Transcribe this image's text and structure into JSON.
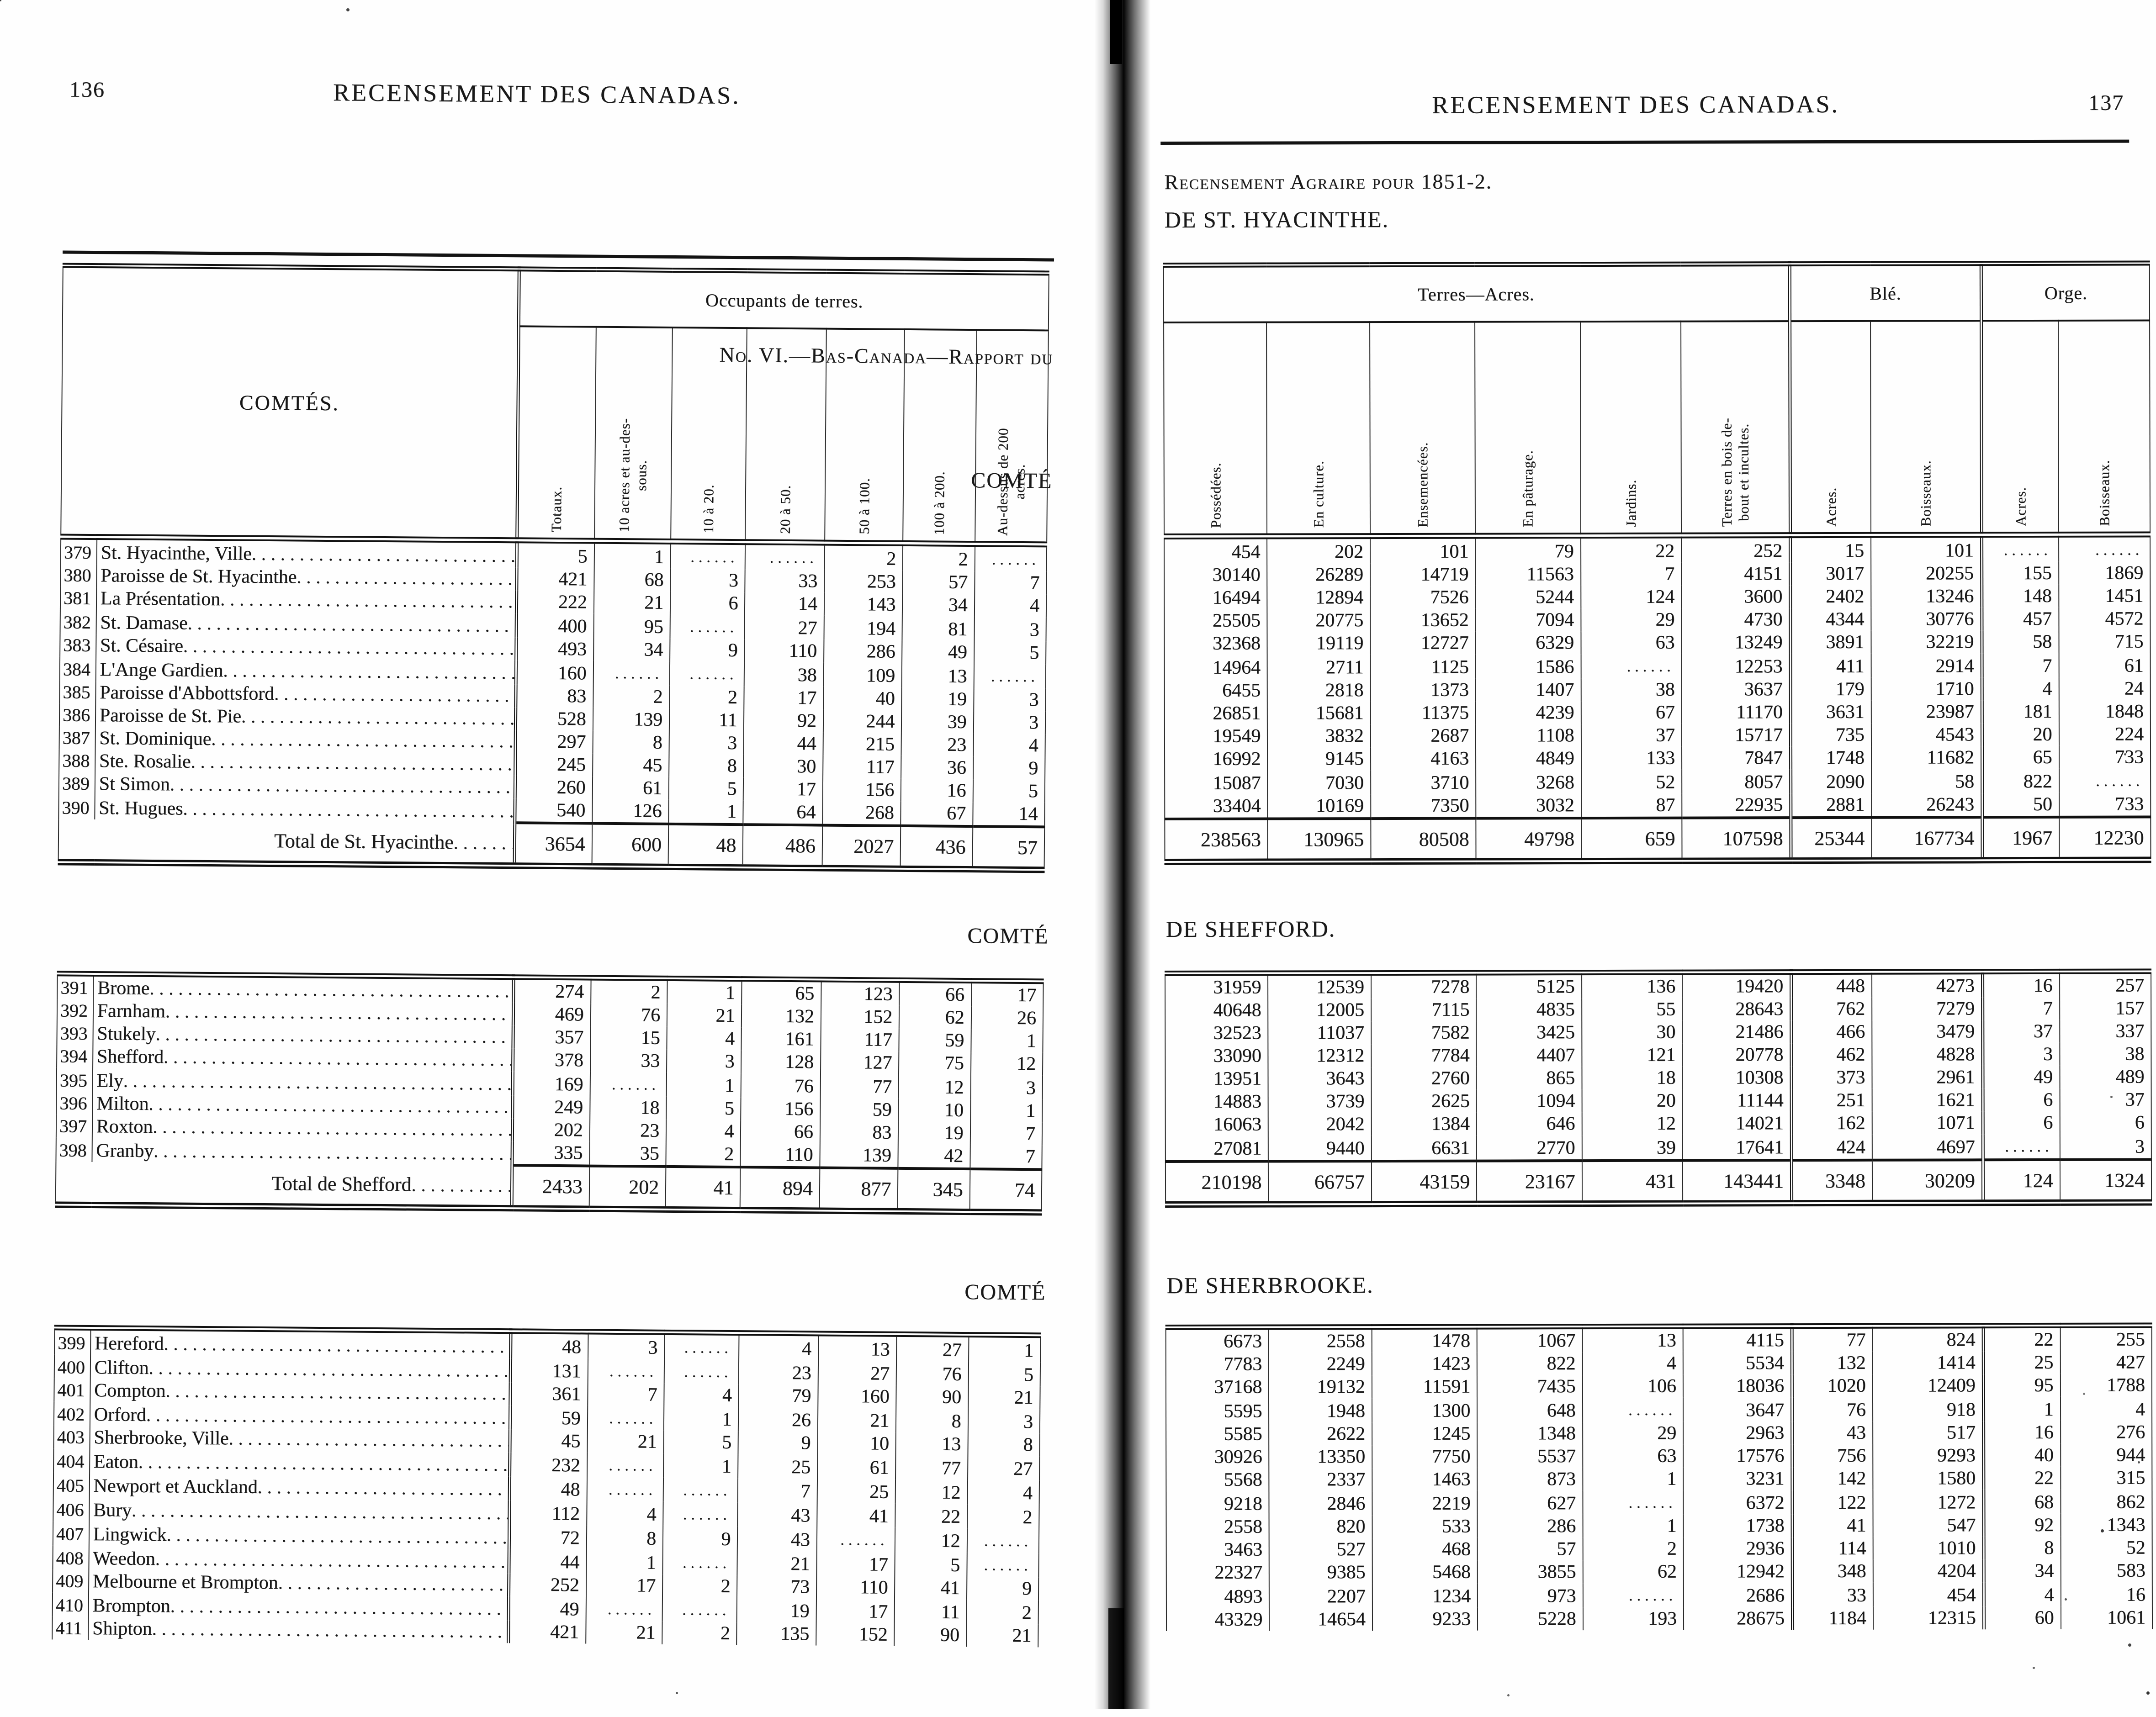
{
  "colors": {
    "ink": "#1a1a1a",
    "paper": "#fefefe",
    "binding": "#050505"
  },
  "left_page": {
    "page_number": "136",
    "running_title": "RECENSEMENT DES CANADAS.",
    "report_line": "No. VI.—Bas-Canada—Rapport du",
    "comte_word_1": "COMTÉ",
    "comte_word_2": "COMTÉ",
    "comte_word_3": "COMTÉ",
    "table": {
      "name_header": "COMTÉS.",
      "group_header": "Occupants de terres.",
      "columns": [
        "Totaux.",
        "10 acres et au-des-\nsous.",
        "10 à 20.",
        "20 à 50.",
        "50 à 100.",
        "100 à 200.",
        "Au-dessus de 200\nacres."
      ]
    },
    "sections": [
      {
        "rows": [
          {
            "no": "379",
            "name": "St. Hyacinthe, Ville",
            "values": [
              "5",
              "1",
              "",
              "",
              "2",
              "2",
              ""
            ]
          },
          {
            "no": "380",
            "name": "Paroisse de St. Hyacinthe",
            "values": [
              "421",
              "68",
              "3",
              "33",
              "253",
              "57",
              "7"
            ]
          },
          {
            "no": "381",
            "name": "La Présentation",
            "values": [
              "222",
              "21",
              "6",
              "14",
              "143",
              "34",
              "4"
            ]
          },
          {
            "no": "382",
            "name": "St. Damase",
            "values": [
              "400",
              "95",
              "",
              "27",
              "194",
              "81",
              "3"
            ]
          },
          {
            "no": "383",
            "name": "St. Césaire",
            "values": [
              "493",
              "34",
              "9",
              "110",
              "286",
              "49",
              "5"
            ]
          },
          {
            "no": "384",
            "name": "L'Ange Gardien",
            "values": [
              "160",
              "",
              "",
              "38",
              "109",
              "13",
              ""
            ]
          },
          {
            "no": "385",
            "name": "Paroisse d'Abbottsford",
            "values": [
              "83",
              "2",
              "2",
              "17",
              "40",
              "19",
              "3"
            ]
          },
          {
            "no": "386",
            "name": "Paroisse de St. Pie",
            "values": [
              "528",
              "139",
              "11",
              "92",
              "244",
              "39",
              "3"
            ]
          },
          {
            "no": "387",
            "name": "St. Dominique",
            "values": [
              "297",
              "8",
              "3",
              "44",
              "215",
              "23",
              "4"
            ]
          },
          {
            "no": "388",
            "name": "Ste. Rosalie",
            "values": [
              "245",
              "45",
              "8",
              "30",
              "117",
              "36",
              "9"
            ]
          },
          {
            "no": "389",
            "name": "St Simon",
            "values": [
              "260",
              "61",
              "5",
              "17",
              "156",
              "16",
              "5"
            ]
          },
          {
            "no": "390",
            "name": "St. Hugues",
            "values": [
              "540",
              "126",
              "1",
              "64",
              "268",
              "67",
              "14"
            ]
          }
        ],
        "total_label": "Total de St. Hyacinthe",
        "total_values": [
          "3654",
          "600",
          "48",
          "486",
          "2027",
          "436",
          "57"
        ]
      },
      {
        "rows": [
          {
            "no": "391",
            "name": "Brome",
            "values": [
              "274",
              "2",
              "1",
              "65",
              "123",
              "66",
              "17"
            ]
          },
          {
            "no": "392",
            "name": "Farnham",
            "values": [
              "469",
              "76",
              "21",
              "132",
              "152",
              "62",
              "26"
            ]
          },
          {
            "no": "393",
            "name": "Stukely",
            "values": [
              "357",
              "15",
              "4",
              "161",
              "117",
              "59",
              "1"
            ]
          },
          {
            "no": "394",
            "name": "Shefford",
            "values": [
              "378",
              "33",
              "3",
              "128",
              "127",
              "75",
              "12"
            ]
          },
          {
            "no": "395",
            "name": "Ely",
            "values": [
              "169",
              "",
              "1",
              "76",
              "77",
              "12",
              "3"
            ]
          },
          {
            "no": "396",
            "name": "Milton",
            "values": [
              "249",
              "18",
              "5",
              "156",
              "59",
              "10",
              "1"
            ]
          },
          {
            "no": "397",
            "name": "Roxton",
            "values": [
              "202",
              "23",
              "4",
              "66",
              "83",
              "19",
              "7"
            ]
          },
          {
            "no": "398",
            "name": "Granby",
            "values": [
              "335",
              "35",
              "2",
              "110",
              "139",
              "42",
              "7"
            ]
          }
        ],
        "total_label": "Total de Shefford",
        "total_values": [
          "2433",
          "202",
          "41",
          "894",
          "877",
          "345",
          "74"
        ]
      },
      {
        "rows": [
          {
            "no": "399",
            "name": "Hereford",
            "values": [
              "48",
              "3",
              "",
              "4",
              "13",
              "27",
              "1"
            ]
          },
          {
            "no": "400",
            "name": "Clifton",
            "values": [
              "131",
              "",
              "",
              "23",
              "27",
              "76",
              "5"
            ]
          },
          {
            "no": "401",
            "name": "Compton",
            "values": [
              "361",
              "7",
              "4",
              "79",
              "160",
              "90",
              "21"
            ]
          },
          {
            "no": "402",
            "name": "Orford",
            "values": [
              "59",
              "",
              "1",
              "26",
              "21",
              "8",
              "3"
            ]
          },
          {
            "no": "403",
            "name": "Sherbrooke, Ville",
            "values": [
              "45",
              "21",
              "5",
              "9",
              "10",
              "13",
              "8"
            ]
          },
          {
            "no": "404",
            "name": "Eaton",
            "values": [
              "232",
              "",
              "1",
              "25",
              "61",
              "77",
              "27"
            ]
          },
          {
            "no": "405",
            "name": "Newport et Auckland",
            "values": [
              "48",
              "",
              "",
              "7",
              "25",
              "12",
              "4"
            ]
          },
          {
            "no": "406",
            "name": "Bury",
            "values": [
              "112",
              "4",
              "",
              "43",
              "41",
              "22",
              "2"
            ]
          },
          {
            "no": "407",
            "name": "Lingwick",
            "values": [
              "72",
              "8",
              "9",
              "43",
              "",
              "12",
              ""
            ]
          },
          {
            "no": "408",
            "name": "Weedon",
            "values": [
              "44",
              "1",
              "",
              "21",
              "17",
              "5",
              ""
            ]
          },
          {
            "no": "409",
            "name": "Melbourne et Brompton",
            "values": [
              "252",
              "17",
              "2",
              "73",
              "110",
              "41",
              "9"
            ]
          },
          {
            "no": "410",
            "name": "Brompton",
            "values": [
              "49",
              "",
              "",
              "19",
              "17",
              "11",
              "2"
            ]
          },
          {
            "no": "411",
            "name": "Shipton",
            "values": [
              "421",
              "21",
              "2",
              "135",
              "152",
              "90",
              "21"
            ]
          }
        ]
      }
    ]
  },
  "right_page": {
    "page_number": "137",
    "running_title": "RECENSEMENT DES CANADAS.",
    "census_line": "Recensement Agraire pour 1851-2.",
    "section_titles": [
      "DE ST. HYACINTHE.",
      "DE SHEFFORD.",
      "DE SHERBROOKE."
    ],
    "table": {
      "groups": [
        {
          "label": "Terres—Acres.",
          "span": 6
        },
        {
          "label": "Blé.",
          "span": 2
        },
        {
          "label": "Orge.",
          "span": 2
        }
      ],
      "columns": [
        "Possédées.",
        "En culture.",
        "Ensemencées.",
        "En pâturage.",
        "Jardins.",
        "Terres en bois de-\nbout et incultes.",
        "Acres.",
        "Boisseaux.",
        "Acres.",
        "Boisseaux."
      ]
    },
    "sections": [
      {
        "rows": [
          [
            "454",
            "202",
            "101",
            "79",
            "22",
            "252",
            "15",
            "101",
            "",
            ""
          ],
          [
            "30140",
            "26289",
            "14719",
            "11563",
            "7",
            "4151",
            "3017",
            "20255",
            "155",
            "1869"
          ],
          [
            "16494",
            "12894",
            "7526",
            "5244",
            "124",
            "3600",
            "2402",
            "13246",
            "148",
            "1451"
          ],
          [
            "25505",
            "20775",
            "13652",
            "7094",
            "29",
            "4730",
            "4344",
            "30776",
            "457",
            "4572"
          ],
          [
            "32368",
            "19119",
            "12727",
            "6329",
            "63",
            "13249",
            "3891",
            "32219",
            "58",
            "715"
          ],
          [
            "14964",
            "2711",
            "1125",
            "1586",
            "",
            "12253",
            "411",
            "2914",
            "7",
            "61"
          ],
          [
            "6455",
            "2818",
            "1373",
            "1407",
            "38",
            "3637",
            "179",
            "1710",
            "4",
            "24"
          ],
          [
            "26851",
            "15681",
            "11375",
            "4239",
            "67",
            "11170",
            "3631",
            "23987",
            "181",
            "1848"
          ],
          [
            "19549",
            "3832",
            "2687",
            "1108",
            "37",
            "15717",
            "735",
            "4543",
            "20",
            "224"
          ],
          [
            "16992",
            "9145",
            "4163",
            "4849",
            "133",
            "7847",
            "1748",
            "11682",
            "65",
            "733"
          ],
          [
            "15087",
            "7030",
            "3710",
            "3268",
            "52",
            "8057",
            "2090",
            "58",
            "822",
            ""
          ],
          [
            "33404",
            "10169",
            "7350",
            "3032",
            "87",
            "22935",
            "2881",
            "26243",
            "50",
            "733"
          ]
        ],
        "total_values": [
          "238563",
          "130965",
          "80508",
          "49798",
          "659",
          "107598",
          "25344",
          "167734",
          "1967",
          "12230"
        ]
      },
      {
        "rows": [
          [
            "31959",
            "12539",
            "7278",
            "5125",
            "136",
            "19420",
            "448",
            "4273",
            "16",
            "257"
          ],
          [
            "40648",
            "12005",
            "7115",
            "4835",
            "55",
            "28643",
            "762",
            "7279",
            "7",
            "157"
          ],
          [
            "32523",
            "11037",
            "7582",
            "3425",
            "30",
            "21486",
            "466",
            "3479",
            "37",
            "337"
          ],
          [
            "33090",
            "12312",
            "7784",
            "4407",
            "121",
            "20778",
            "462",
            "4828",
            "3",
            "38"
          ],
          [
            "13951",
            "3643",
            "2760",
            "865",
            "18",
            "10308",
            "373",
            "2961",
            "49",
            "489"
          ],
          [
            "14883",
            "3739",
            "2625",
            "1094",
            "20",
            "11144",
            "251",
            "1621",
            "6",
            "37"
          ],
          [
            "16063",
            "2042",
            "1384",
            "646",
            "12",
            "14021",
            "162",
            "1071",
            "6",
            "6"
          ],
          [
            "27081",
            "9440",
            "6631",
            "2770",
            "39",
            "17641",
            "424",
            "4697",
            "",
            "3"
          ]
        ],
        "total_values": [
          "210198",
          "66757",
          "43159",
          "23167",
          "431",
          "143441",
          "3348",
          "30209",
          "124",
          "1324"
        ]
      },
      {
        "rows": [
          [
            "6673",
            "2558",
            "1478",
            "1067",
            "13",
            "4115",
            "77",
            "824",
            "22",
            "255"
          ],
          [
            "7783",
            "2249",
            "1423",
            "822",
            "4",
            "5534",
            "132",
            "1414",
            "25",
            "427"
          ],
          [
            "37168",
            "19132",
            "11591",
            "7435",
            "106",
            "18036",
            "1020",
            "12409",
            "95",
            "1788"
          ],
          [
            "5595",
            "1948",
            "1300",
            "648",
            "",
            "3647",
            "76",
            "918",
            "1",
            "4"
          ],
          [
            "5585",
            "2622",
            "1245",
            "1348",
            "29",
            "2963",
            "43",
            "517",
            "16",
            "276"
          ],
          [
            "30926",
            "13350",
            "7750",
            "5537",
            "63",
            "17576",
            "756",
            "9293",
            "40",
            "944"
          ],
          [
            "5568",
            "2337",
            "1463",
            "873",
            "1",
            "3231",
            "142",
            "1580",
            "22",
            "315"
          ],
          [
            "9218",
            "2846",
            "2219",
            "627",
            "",
            "6372",
            "122",
            "1272",
            "68",
            "862"
          ],
          [
            "2558",
            "820",
            "533",
            "286",
            "1",
            "1738",
            "41",
            "547",
            "92",
            "1343"
          ],
          [
            "3463",
            "527",
            "468",
            "57",
            "2",
            "2936",
            "114",
            "1010",
            "8",
            "52"
          ],
          [
            "22327",
            "9385",
            "5468",
            "3855",
            "62",
            "12942",
            "348",
            "4204",
            "34",
            "583"
          ],
          [
            "4893",
            "2207",
            "1234",
            "973",
            "",
            "2686",
            "33",
            "454",
            "4",
            "16"
          ],
          [
            "43329",
            "14654",
            "9233",
            "5228",
            "193",
            "28675",
            "1184",
            "12315",
            "60",
            "1061"
          ]
        ]
      }
    ]
  }
}
